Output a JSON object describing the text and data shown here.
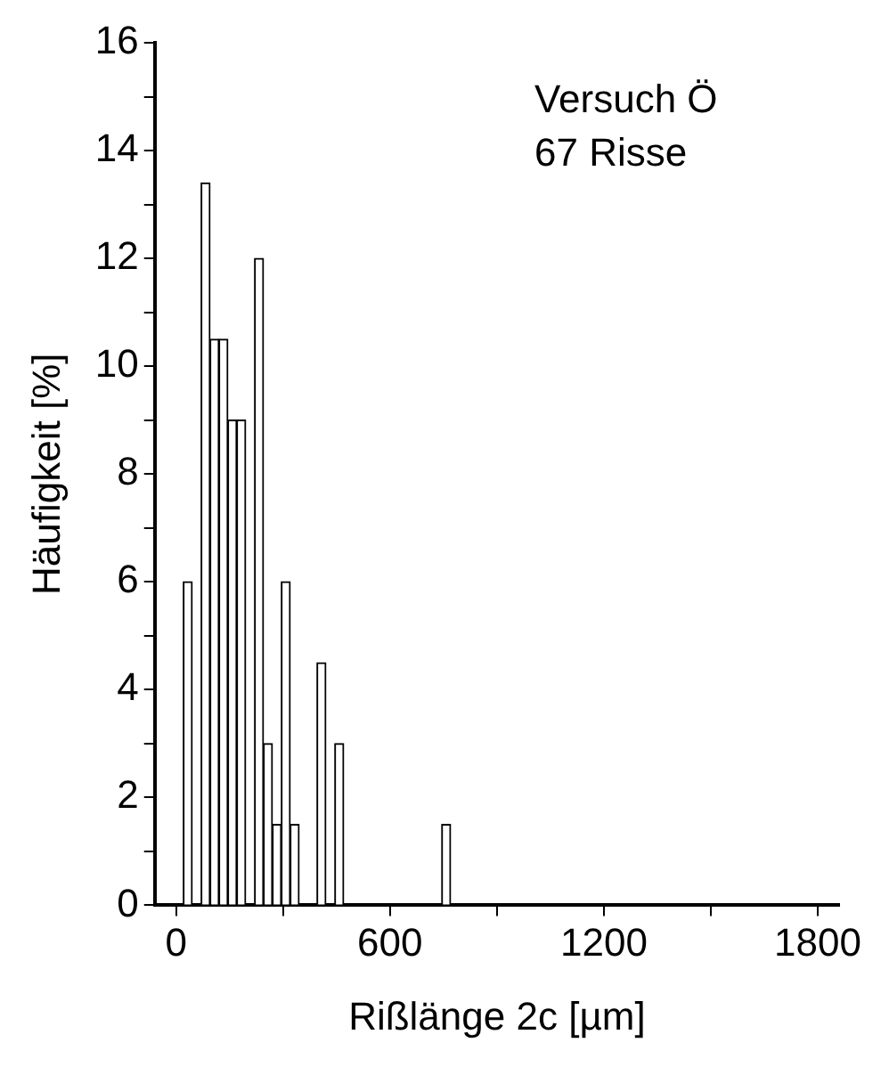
{
  "chart_data": {
    "type": "histogram",
    "xlabel": "Rißlänge 2c [µm]",
    "ylabel": "Häufigkeit [%]",
    "annotations": [
      "Versuch Ö",
      "67 Risse"
    ],
    "bins": [
      20,
      45,
      70,
      95,
      120,
      145,
      170,
      195,
      220,
      245,
      270,
      295,
      320,
      345,
      370,
      395,
      420,
      445,
      470,
      495,
      520,
      545,
      570,
      595,
      620,
      645,
      670,
      695,
      720,
      745,
      770
    ],
    "values": [
      6,
      0,
      13.4,
      10.5,
      10.5,
      9,
      9,
      0,
      12,
      3,
      1.5,
      6,
      1.5,
      0,
      0,
      4.5,
      0,
      3,
      0,
      0,
      0,
      0,
      0,
      0,
      0,
      0,
      0,
      0,
      0,
      1.5
    ],
    "color": "#ffffff",
    "xlim": [
      -60,
      1860
    ],
    "xticks": [
      0,
      {
        "value": 300,
        "label": null
      },
      600,
      {
        "value": 900,
        "label": null
      },
      1200,
      {
        "value": 1500,
        "label": null
      },
      1800
    ],
    "ylim": [
      0,
      16
    ],
    "yticks": [
      0,
      {
        "value": 1,
        "label": null
      },
      2,
      {
        "value": 3,
        "label": null
      },
      4,
      {
        "value": 5,
        "label": null
      },
      6,
      {
        "value": 7,
        "label": null
      },
      8,
      {
        "value": 9,
        "label": null
      },
      10,
      {
        "value": 11,
        "label": null
      },
      12,
      {
        "value": 13,
        "label": null
      },
      14,
      {
        "value": 15,
        "label": null
      },
      16
    ],
    "grid": false,
    "legend": false
  }
}
